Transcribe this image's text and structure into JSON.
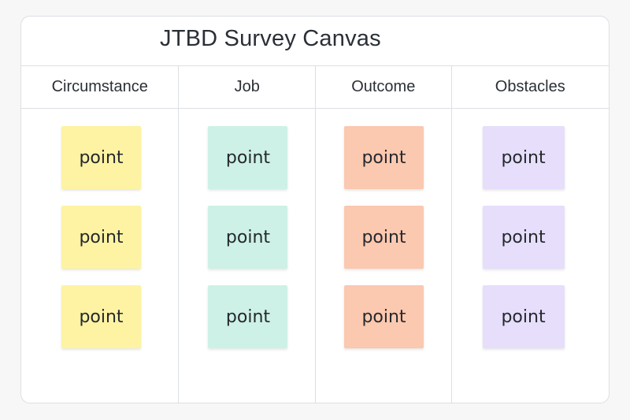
{
  "title": "JTBD Survey Canvas",
  "columns": [
    {
      "header": "Circumstance",
      "color": "#fdf3a3",
      "notes": [
        "point",
        "point",
        "point"
      ]
    },
    {
      "header": "Job",
      "color": "#cdf1e6",
      "notes": [
        "point",
        "point",
        "point"
      ]
    },
    {
      "header": "Outcome",
      "color": "#fbc8b0",
      "notes": [
        "point",
        "point",
        "point"
      ]
    },
    {
      "header": "Obstacles",
      "color": "#e6defb",
      "notes": [
        "point",
        "point",
        "point"
      ]
    }
  ]
}
